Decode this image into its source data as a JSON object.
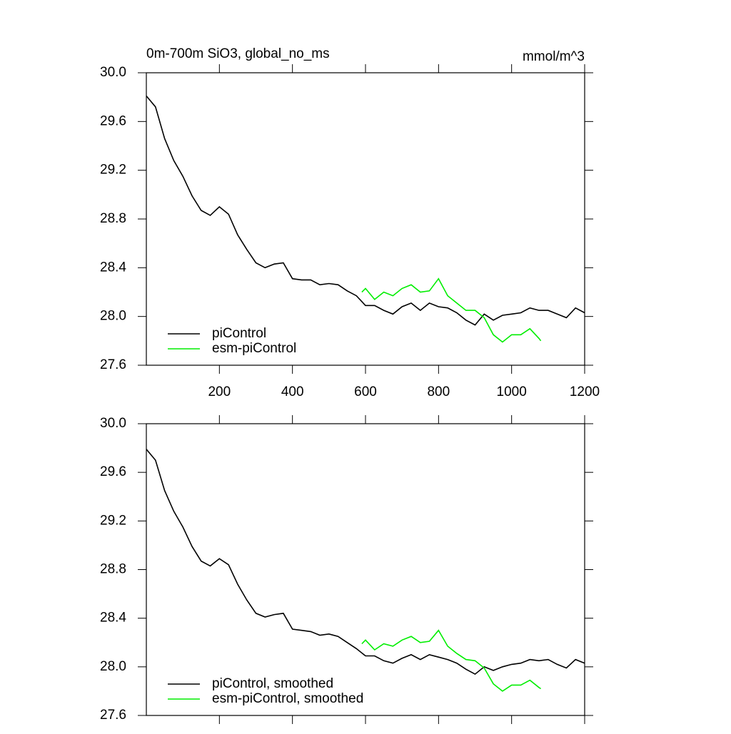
{
  "chart_data": [
    {
      "type": "line",
      "title": "0m-700m SiO3, global_no_ms",
      "units": "mmol/m^3",
      "xlim": [
        0,
        1200
      ],
      "xticks": [
        200,
        400,
        600,
        800,
        1000,
        1200
      ],
      "ylim": [
        27.6,
        30
      ],
      "yticks": [
        27.6,
        {
          "value": 28,
          "label": "28.0"
        },
        28.4,
        28.8,
        29.2,
        29.6,
        {
          "value": 30,
          "label": "30.0"
        }
      ],
      "legend": "lower left",
      "series": [
        {
          "name": "piControl",
          "color": "#000000",
          "x": [
            0,
            25,
            50,
            75,
            100,
            125,
            150,
            175,
            200,
            225,
            250,
            275,
            300,
            325,
            350,
            375,
            400,
            425,
            450,
            475,
            500,
            525,
            550,
            575,
            600,
            625,
            650,
            675,
            700,
            725,
            750,
            775,
            800,
            825,
            850,
            875,
            900,
            925,
            950,
            975,
            1000,
            1025,
            1050,
            1075,
            1100,
            1125,
            1150,
            1175,
            1200
          ],
          "values": [
            29.81,
            29.72,
            29.46,
            29.28,
            29.15,
            28.99,
            28.87,
            28.83,
            28.9,
            28.84,
            28.67,
            28.55,
            28.44,
            28.4,
            28.43,
            28.44,
            28.31,
            28.3,
            28.3,
            28.26,
            28.27,
            28.26,
            28.21,
            28.17,
            28.09,
            28.09,
            28.05,
            28.02,
            28.08,
            28.11,
            28.05,
            28.11,
            28.08,
            28.07,
            28.03,
            27.97,
            27.93,
            28.02,
            27.97,
            28.01,
            28.02,
            28.03,
            28.07,
            28.05,
            28.05,
            28.02,
            27.99,
            28.07,
            28.03
          ]
        },
        {
          "name": "esm-piControl",
          "color": "#00ee00",
          "x": [
            590,
            600,
            625,
            650,
            675,
            700,
            725,
            750,
            775,
            800,
            825,
            850,
            875,
            900,
            925,
            950,
            975,
            1000,
            1025,
            1050,
            1075,
            1080
          ],
          "values": [
            28.2,
            28.23,
            28.14,
            28.2,
            28.17,
            28.23,
            28.26,
            28.2,
            28.21,
            28.31,
            28.17,
            28.11,
            28.05,
            28.05,
            27.99,
            27.85,
            27.79,
            27.85,
            27.85,
            27.9,
            27.82,
            27.8
          ]
        }
      ]
    },
    {
      "type": "line",
      "xlim": [
        0,
        1200
      ],
      "xticks": [
        200,
        400,
        600,
        800,
        1000,
        1200
      ],
      "ylim": [
        27.6,
        30
      ],
      "yticks": [
        27.6,
        {
          "value": 28,
          "label": "28.0"
        },
        28.4,
        28.8,
        29.2,
        29.6,
        {
          "value": 30,
          "label": "30.0"
        }
      ],
      "legend": "lower left",
      "series": [
        {
          "name": "piControl, smoothed",
          "color": "#000000",
          "x": [
            0,
            25,
            50,
            75,
            100,
            125,
            150,
            175,
            200,
            225,
            250,
            275,
            300,
            325,
            350,
            375,
            400,
            425,
            450,
            475,
            500,
            525,
            550,
            575,
            600,
            625,
            650,
            675,
            700,
            725,
            750,
            775,
            800,
            825,
            850,
            875,
            900,
            925,
            950,
            975,
            1000,
            1025,
            1050,
            1075,
            1100,
            1125,
            1150,
            1175,
            1200
          ],
          "values": [
            29.79,
            29.7,
            29.45,
            29.28,
            29.15,
            28.99,
            28.87,
            28.83,
            28.89,
            28.84,
            28.68,
            28.55,
            28.44,
            28.41,
            28.43,
            28.44,
            28.31,
            28.3,
            28.29,
            28.26,
            28.27,
            28.25,
            28.2,
            28.15,
            28.09,
            28.09,
            28.05,
            28.03,
            28.07,
            28.1,
            28.06,
            28.1,
            28.08,
            28.06,
            28.03,
            27.98,
            27.94,
            28.0,
            27.97,
            28.0,
            28.02,
            28.03,
            28.06,
            28.05,
            28.06,
            28.02,
            27.99,
            28.06,
            28.03
          ]
        },
        {
          "name": "esm-piControl, smoothed",
          "color": "#00ee00",
          "x": [
            590,
            600,
            625,
            650,
            675,
            700,
            725,
            750,
            775,
            800,
            825,
            850,
            875,
            900,
            925,
            950,
            975,
            1000,
            1025,
            1050,
            1075,
            1080
          ],
          "values": [
            28.19,
            28.22,
            28.14,
            28.19,
            28.17,
            28.22,
            28.25,
            28.2,
            28.21,
            28.3,
            28.17,
            28.11,
            28.06,
            28.05,
            27.99,
            27.86,
            27.8,
            27.85,
            27.85,
            27.89,
            27.83,
            27.82
          ]
        }
      ]
    }
  ]
}
